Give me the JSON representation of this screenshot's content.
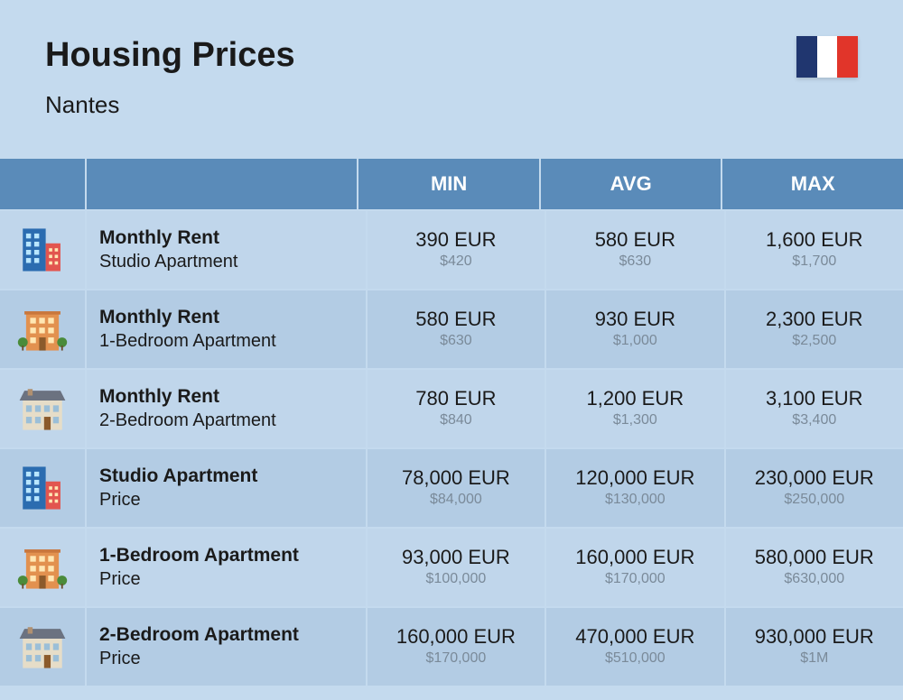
{
  "header": {
    "title": "Housing Prices",
    "subtitle": "Nantes"
  },
  "flag": {
    "colors": [
      "#20366f",
      "#ffffff",
      "#e1352a"
    ]
  },
  "table": {
    "columns": [
      "MIN",
      "AVG",
      "MAX"
    ],
    "header_bg": "#5a8bb9",
    "header_text": "#ffffff",
    "row_bg_even": "#b3cce4",
    "row_bg_odd": "#c0d6eb",
    "main_text_color": "#1a1a1a",
    "sub_text_color": "#7a8a99",
    "rows": [
      {
        "icon": "building-tall",
        "title": "Monthly Rent",
        "subtitle": "Studio Apartment",
        "min": {
          "main": "390 EUR",
          "sub": "$420"
        },
        "avg": {
          "main": "580 EUR",
          "sub": "$630"
        },
        "max": {
          "main": "1,600 EUR",
          "sub": "$1,700"
        }
      },
      {
        "icon": "building-mid",
        "title": "Monthly Rent",
        "subtitle": "1-Bedroom Apartment",
        "min": {
          "main": "580 EUR",
          "sub": "$630"
        },
        "avg": {
          "main": "930 EUR",
          "sub": "$1,000"
        },
        "max": {
          "main": "2,300 EUR",
          "sub": "$2,500"
        }
      },
      {
        "icon": "building-house",
        "title": "Monthly Rent",
        "subtitle": "2-Bedroom Apartment",
        "min": {
          "main": "780 EUR",
          "sub": "$840"
        },
        "avg": {
          "main": "1,200 EUR",
          "sub": "$1,300"
        },
        "max": {
          "main": "3,100 EUR",
          "sub": "$3,400"
        }
      },
      {
        "icon": "building-tall",
        "title": "Studio Apartment",
        "subtitle": "Price",
        "min": {
          "main": "78,000 EUR",
          "sub": "$84,000"
        },
        "avg": {
          "main": "120,000 EUR",
          "sub": "$130,000"
        },
        "max": {
          "main": "230,000 EUR",
          "sub": "$250,000"
        }
      },
      {
        "icon": "building-mid",
        "title": "1-Bedroom Apartment",
        "subtitle": "Price",
        "min": {
          "main": "93,000 EUR",
          "sub": "$100,000"
        },
        "avg": {
          "main": "160,000 EUR",
          "sub": "$170,000"
        },
        "max": {
          "main": "580,000 EUR",
          "sub": "$630,000"
        }
      },
      {
        "icon": "building-house",
        "title": "2-Bedroom Apartment",
        "subtitle": "Price",
        "min": {
          "main": "160,000 EUR",
          "sub": "$170,000"
        },
        "avg": {
          "main": "470,000 EUR",
          "sub": "$510,000"
        },
        "max": {
          "main": "930,000 EUR",
          "sub": "$1M"
        }
      }
    ]
  },
  "icons": {
    "building-tall": {
      "main_fill": "#2b6cb0",
      "accent_fill": "#e2554f",
      "window_fill": "#b9e6ff"
    },
    "building-mid": {
      "main_fill": "#e2914f",
      "accent_fill": "#4a8b3a",
      "window_fill": "#ffe7b3"
    },
    "building-house": {
      "main_fill": "#e6ddc8",
      "roof_fill": "#6b7280",
      "window_fill": "#9bbfd8"
    }
  }
}
